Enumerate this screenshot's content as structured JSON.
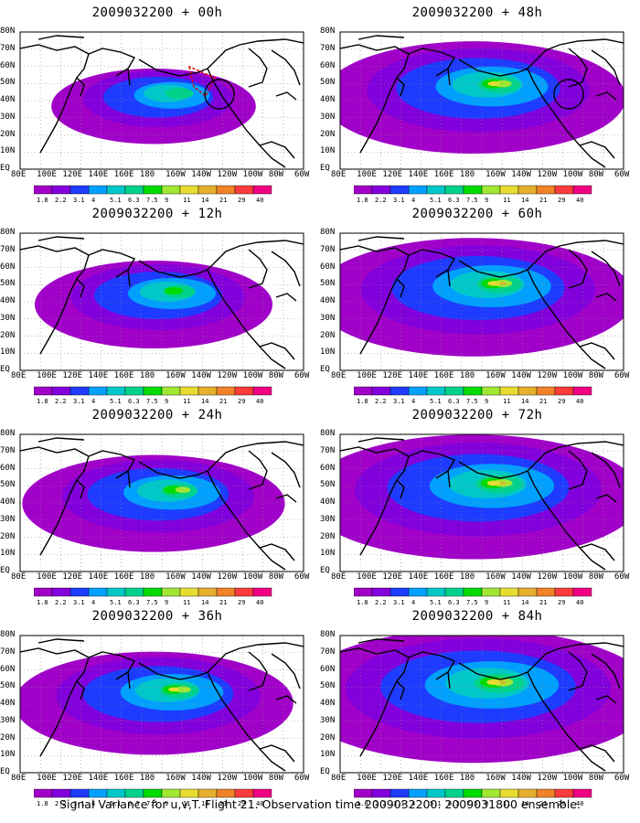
{
  "panels": [
    {
      "title": "2009032200 + 00h",
      "intensity": 0.6,
      "circle": true,
      "route": true
    },
    {
      "title": "2009032200 + 48h",
      "intensity": 1.8,
      "circle": true,
      "route": false
    },
    {
      "title": "2009032200 + 12h",
      "intensity": 1.0,
      "circle": false,
      "route": false
    },
    {
      "title": "2009032200 + 60h",
      "intensity": 2.0,
      "circle": false,
      "route": false
    },
    {
      "title": "2009032200 + 24h",
      "intensity": 1.3,
      "circle": false,
      "route": false
    },
    {
      "title": "2009032200 + 72h",
      "intensity": 2.2,
      "circle": false,
      "route": false
    },
    {
      "title": "2009032200 + 36h",
      "intensity": 1.5,
      "circle": false,
      "route": false
    },
    {
      "title": "2009032200 + 84h",
      "intensity": 2.5,
      "circle": false,
      "route": false
    }
  ],
  "lat_labels": [
    "80N",
    "70N",
    "60N",
    "50N",
    "40N",
    "30N",
    "20N",
    "10N",
    "EQ"
  ],
  "lon_labels": [
    "80E",
    "100E",
    "120E",
    "140E",
    "160E",
    "180",
    "160W",
    "140W",
    "120W",
    "100W",
    "80W",
    "60W"
  ],
  "colorbar": {
    "labels": [
      "1.8",
      "2.2",
      "3.1",
      "4",
      "5.1",
      "6.3",
      "7.5",
      "9",
      "11",
      "14",
      "21",
      "29",
      "40"
    ],
    "colors": [
      "#a000c8",
      "#8200dc",
      "#1e3cff",
      "#00a0ff",
      "#00c8c8",
      "#00d28c",
      "#00dc00",
      "#a0e632",
      "#e6dc32",
      "#e6af2d",
      "#f08228",
      "#fa3c3c",
      "#f00082"
    ]
  },
  "caption": "Signal Variance for u,v,T. Flight 21. Observation time 2009032200. 2009031800 ensemble."
}
